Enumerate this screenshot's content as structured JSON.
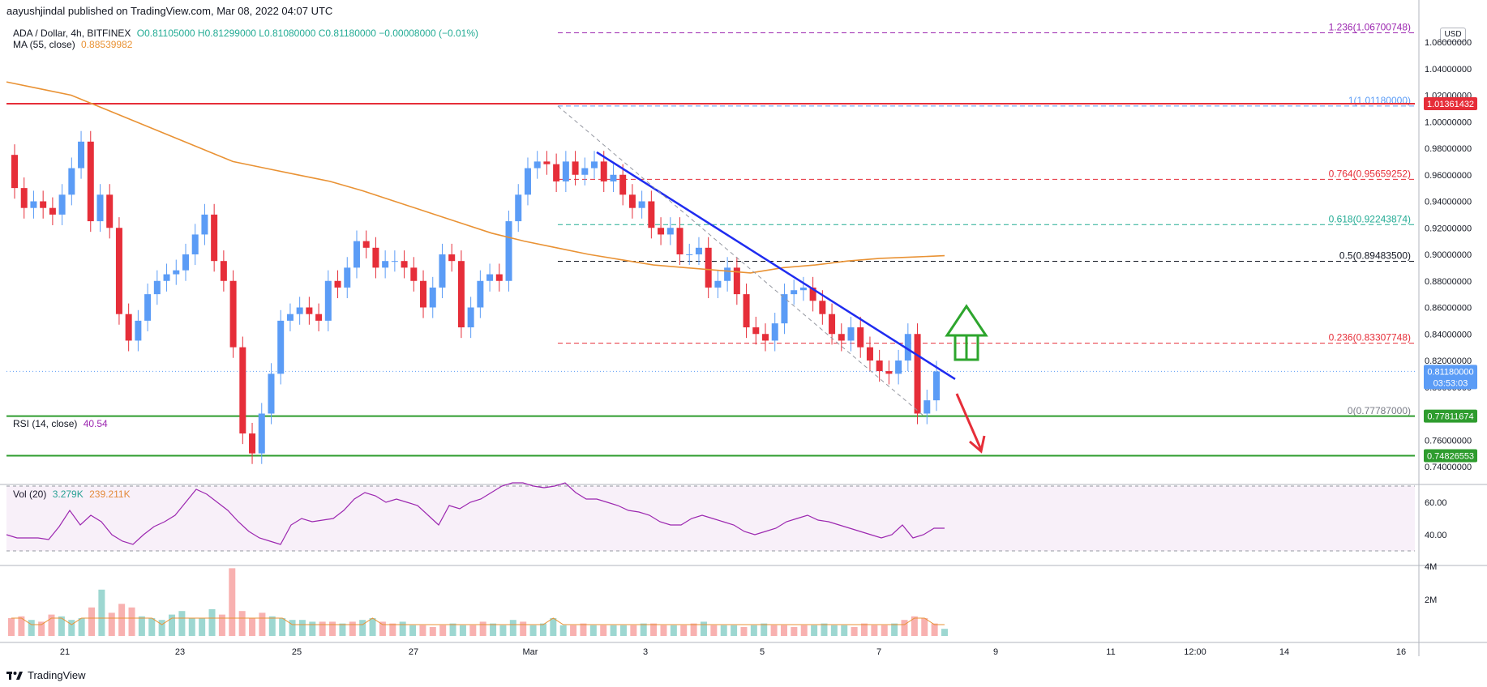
{
  "header": {
    "publish_line": "aayushjindal published on TradingView.com, Mar 08, 2022 04:07 UTC",
    "symbol": "ADA / Dollar, 4h, BITFINEX",
    "ohlc": "O0.81105000 H0.81299000 L0.81080000 C0.81180000 −0.00008000 (−0.01%)",
    "ma_label": "MA (55, close)",
    "ma_value": "0.88539982",
    "currency_badge": "USD"
  },
  "rsi_panel": {
    "label": "RSI (14, close)",
    "value": "40.54"
  },
  "vol_panel": {
    "label": "Vol (20)",
    "value1": "3.279K",
    "value2": "239.211K"
  },
  "footer": {
    "brand": "TradingView"
  },
  "colors": {
    "up": "#5b9cf6",
    "down": "#e62e39",
    "ma": "#e99234",
    "trendline": "#1f2cf0",
    "support": "#2e9c2e",
    "resistance": "#e62e39",
    "arrow_up": "#2da52d",
    "arrow_down": "#e62e39",
    "rsi": "#9c27b0",
    "fib_upper": "#9c27b0",
    "fib_mid": "#e62e39",
    "fib_618": "#22ab94"
  },
  "chart_data": {
    "type": "candlestick",
    "price_axis": {
      "ylim": [
        0.74,
        1.065
      ],
      "ticks": [
        "1.06000000",
        "1.04000000",
        "1.02000000",
        "1.00000000",
        "0.98000000",
        "0.96000000",
        "0.94000000",
        "0.92000000",
        "0.90000000",
        "0.88000000",
        "0.86000000",
        "0.84000000",
        "0.82000000",
        "0.80000000",
        "0.78000000",
        "0.76000000",
        "0.74000000"
      ]
    },
    "time_axis": [
      "21",
      "23",
      "25",
      "27",
      "Mar",
      "3",
      "5",
      "7",
      "9",
      "11",
      "12:00",
      "14",
      "16"
    ],
    "price_labels": [
      {
        "text": "1.01361432",
        "value": 1.01361432,
        "color": "#e62e39"
      },
      {
        "text": "0.81180000",
        "value": 0.8118,
        "color": "#5b9cf6",
        "sub": "03:53:03"
      },
      {
        "text": "0.77811674",
        "value": 0.77811674,
        "color": "#2e9c2e"
      },
      {
        "text": "0.74826553",
        "value": 0.74826553,
        "color": "#2e9c2e"
      }
    ],
    "horizontal_levels": [
      {
        "name": "resistance",
        "value": 1.01361432
      },
      {
        "name": "support-1",
        "value": 0.77811674
      },
      {
        "name": "support-2",
        "value": 0.74826553
      }
    ],
    "fib_levels": [
      {
        "text": "1.236(1.06700748)",
        "value": 1.06700748,
        "color": "#9c27b0"
      },
      {
        "text": "1(1.01180000)",
        "value": 1.0118,
        "color": "#5b9cf6"
      },
      {
        "text": "0.764(0.95659252)",
        "value": 0.95659252,
        "color": "#e62e39"
      },
      {
        "text": "0.618(0.92243874)",
        "value": 0.92243874,
        "color": "#22ab94"
      },
      {
        "text": "0.5(0.89483500)",
        "value": 0.894835,
        "color": "#131722"
      },
      {
        "text": "0.236(0.83307748)",
        "value": 0.83307748,
        "color": "#e62e39"
      },
      {
        "text": "0(0.77787000)",
        "value": 0.77787,
        "color": "#787b86"
      }
    ],
    "candles": [
      [
        0.975,
        0.95
      ],
      [
        0.95,
        0.935
      ],
      [
        0.935,
        0.94
      ],
      [
        0.94,
        0.935
      ],
      [
        0.935,
        0.93
      ],
      [
        0.93,
        0.945
      ],
      [
        0.945,
        0.965
      ],
      [
        0.965,
        0.985
      ],
      [
        0.985,
        0.925
      ],
      [
        0.925,
        0.945
      ],
      [
        0.945,
        0.92
      ],
      [
        0.92,
        0.855
      ],
      [
        0.855,
        0.835
      ],
      [
        0.835,
        0.85
      ],
      [
        0.85,
        0.87
      ],
      [
        0.87,
        0.88
      ],
      [
        0.88,
        0.885
      ],
      [
        0.885,
        0.888
      ],
      [
        0.888,
        0.9
      ],
      [
        0.9,
        0.915
      ],
      [
        0.915,
        0.93
      ],
      [
        0.93,
        0.895
      ],
      [
        0.895,
        0.88
      ],
      [
        0.88,
        0.83
      ],
      [
        0.83,
        0.765
      ],
      [
        0.765,
        0.75
      ],
      [
        0.75,
        0.78
      ],
      [
        0.78,
        0.81
      ],
      [
        0.81,
        0.85
      ],
      [
        0.85,
        0.855
      ],
      [
        0.855,
        0.86
      ],
      [
        0.86,
        0.855
      ],
      [
        0.855,
        0.85
      ],
      [
        0.85,
        0.88
      ],
      [
        0.88,
        0.875
      ],
      [
        0.875,
        0.89
      ],
      [
        0.89,
        0.91
      ],
      [
        0.91,
        0.905
      ],
      [
        0.905,
        0.89
      ],
      [
        0.89,
        0.895
      ],
      [
        0.895,
        0.895
      ],
      [
        0.895,
        0.89
      ],
      [
        0.89,
        0.88
      ],
      [
        0.88,
        0.86
      ],
      [
        0.86,
        0.875
      ],
      [
        0.875,
        0.9
      ],
      [
        0.9,
        0.895
      ],
      [
        0.895,
        0.845
      ],
      [
        0.845,
        0.86
      ],
      [
        0.86,
        0.88
      ],
      [
        0.88,
        0.885
      ],
      [
        0.885,
        0.88
      ],
      [
        0.88,
        0.925
      ],
      [
        0.925,
        0.945
      ],
      [
        0.945,
        0.965
      ],
      [
        0.965,
        0.97
      ],
      [
        0.97,
        0.968
      ],
      [
        0.968,
        0.955
      ],
      [
        0.955,
        0.97
      ],
      [
        0.97,
        0.96
      ],
      [
        0.96,
        0.965
      ],
      [
        0.965,
        0.97
      ],
      [
        0.97,
        0.955
      ],
      [
        0.955,
        0.96
      ],
      [
        0.96,
        0.945
      ],
      [
        0.945,
        0.935
      ],
      [
        0.935,
        0.94
      ],
      [
        0.94,
        0.92
      ],
      [
        0.92,
        0.915
      ],
      [
        0.915,
        0.92
      ],
      [
        0.92,
        0.9
      ],
      [
        0.9,
        0.9
      ],
      [
        0.9,
        0.905
      ],
      [
        0.905,
        0.875
      ],
      [
        0.875,
        0.88
      ],
      [
        0.88,
        0.89
      ],
      [
        0.89,
        0.87
      ],
      [
        0.87,
        0.845
      ],
      [
        0.845,
        0.84
      ],
      [
        0.84,
        0.835
      ],
      [
        0.835,
        0.848
      ],
      [
        0.848,
        0.87
      ],
      [
        0.87,
        0.873
      ],
      [
        0.873,
        0.875
      ],
      [
        0.875,
        0.865
      ],
      [
        0.865,
        0.855
      ],
      [
        0.855,
        0.84
      ],
      [
        0.84,
        0.835
      ],
      [
        0.835,
        0.845
      ],
      [
        0.845,
        0.83
      ],
      [
        0.83,
        0.82
      ],
      [
        0.82,
        0.812
      ],
      [
        0.812,
        0.81
      ],
      [
        0.81,
        0.82
      ],
      [
        0.82,
        0.84
      ],
      [
        0.84,
        0.78
      ],
      [
        0.78,
        0.79
      ],
      [
        0.79,
        0.8118
      ]
    ],
    "ma55": [
      1.03,
      1.025,
      1.02,
      1.01,
      1.0,
      0.99,
      0.98,
      0.97,
      0.965,
      0.96,
      0.955,
      0.948,
      0.94,
      0.932,
      0.924,
      0.916,
      0.91,
      0.905,
      0.9,
      0.896,
      0.892,
      0.89,
      0.888,
      0.886,
      0.89,
      0.892,
      0.895,
      0.897,
      0.898,
      0.899
    ],
    "rsi": [
      40,
      38,
      38,
      38,
      37,
      45,
      55,
      46,
      52,
      48,
      40,
      36,
      34,
      40,
      45,
      48,
      52,
      60,
      68,
      65,
      60,
      55,
      48,
      42,
      38,
      36,
      34,
      46,
      50,
      48,
      49,
      50,
      55,
      62,
      66,
      64,
      60,
      62,
      60,
      58,
      52,
      46,
      58,
      56,
      60,
      62,
      66,
      70,
      72,
      72,
      70,
      69,
      70,
      72,
      66,
      62,
      62,
      60,
      58,
      55,
      54,
      52,
      48,
      46,
      46,
      50,
      52,
      50,
      48,
      46,
      42,
      40,
      42,
      44,
      48,
      50,
      52,
      49,
      48,
      46,
      44,
      42,
      40,
      38,
      40,
      46,
      38,
      40,
      44,
      44
    ],
    "volume": [
      1.0,
      1.1,
      0.9,
      0.8,
      1.2,
      1.1,
      0.9,
      1.0,
      1.6,
      2.6,
      1.3,
      1.8,
      1.6,
      1.1,
      1.0,
      0.9,
      1.2,
      1.4,
      1.0,
      1.0,
      1.5,
      1.2,
      3.8,
      1.4,
      1.0,
      1.3,
      1.1,
      1.0,
      0.9,
      0.9,
      0.8,
      0.8,
      0.8,
      0.7,
      0.8,
      0.9,
      1.0,
      0.8,
      0.7,
      0.8,
      0.6,
      0.6,
      0.5,
      0.6,
      0.7,
      0.6,
      0.6,
      0.8,
      0.7,
      0.6,
      0.9,
      0.8,
      0.6,
      0.7,
      1.0,
      0.6,
      0.6,
      0.7,
      0.6,
      0.6,
      0.6,
      0.6,
      0.6,
      0.7,
      0.7,
      0.6,
      0.6,
      0.6,
      0.7,
      0.8,
      0.6,
      0.6,
      0.6,
      0.5,
      0.6,
      0.7,
      0.6,
      0.6,
      0.5,
      0.6,
      0.6,
      0.7,
      0.6,
      0.6,
      0.5,
      0.7,
      0.6,
      0.6,
      0.7,
      0.9,
      1.1,
      1.0,
      0.7,
      0.4
    ],
    "volume_axis": [
      "4M",
      "2M"
    ],
    "rsi_axis": [
      "60.00",
      "40.00"
    ]
  }
}
